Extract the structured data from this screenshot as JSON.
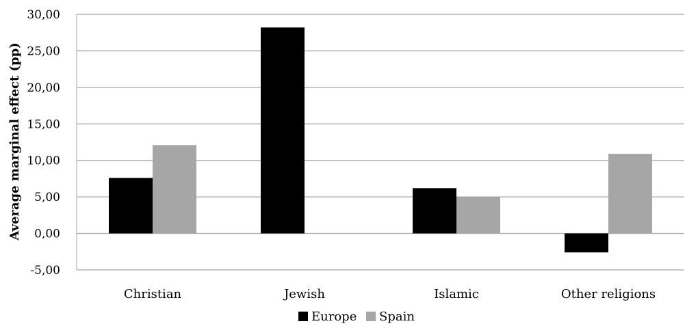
{
  "chart_data": {
    "type": "bar",
    "title": "",
    "xlabel": "",
    "ylabel": "Average marginal effect (pp)",
    "categories": [
      "Christian",
      "Jewish",
      "Islamic",
      "Other religions"
    ],
    "series": [
      {
        "name": "Europe",
        "values": [
          7.6,
          28.2,
          6.2,
          -2.6
        ],
        "color": "#000000"
      },
      {
        "name": "Spain",
        "values": [
          12.1,
          null,
          5.0,
          10.9
        ],
        "color": "#a6a6a6"
      }
    ],
    "ylim": [
      -5,
      30
    ],
    "yticks": [
      {
        "value": -5,
        "label": "-5,00"
      },
      {
        "value": 0,
        "label": "0,00"
      },
      {
        "value": 5,
        "label": "5,00"
      },
      {
        "value": 10,
        "label": "10,00"
      },
      {
        "value": 15,
        "label": "15,00"
      },
      {
        "value": 20,
        "label": "20,00"
      },
      {
        "value": 25,
        "label": "25,00"
      },
      {
        "value": 30,
        "label": "30,00"
      }
    ],
    "grid": true,
    "gridline_color": "#a6a6a6",
    "legend_position": "bottom"
  }
}
